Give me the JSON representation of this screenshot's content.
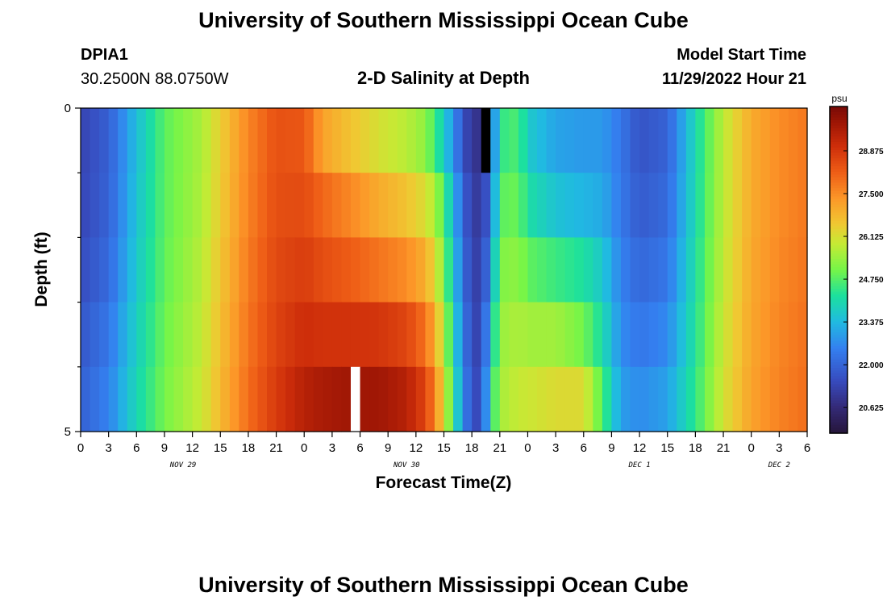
{
  "page": {
    "title": "University of Southern Mississippi Ocean Cube",
    "bottom_title": "University of Southern Mississippi Ocean Cube"
  },
  "header": {
    "station_id": "DPIA1",
    "coords": "30.2500N  88.0750W",
    "plot_title": "2-D Salinity at Depth",
    "model_start_label": "Model Start Time",
    "model_start_value": "11/29/2022 Hour 21"
  },
  "chart_data": {
    "type": "heatmap",
    "title": "2-D Salinity at Depth",
    "xlabel": "Forecast Time(Z)",
    "ylabel": "Depth (ft)",
    "x_hours_start": 0,
    "x_hours_end": 78,
    "x_tick_labels": [
      "0",
      "3",
      "6",
      "9",
      "12",
      "15",
      "18",
      "21",
      "0",
      "3",
      "6",
      "9",
      "12",
      "15",
      "18",
      "21",
      "0",
      "3",
      "6",
      "9",
      "12",
      "15",
      "18",
      "21",
      "0",
      "3",
      "6"
    ],
    "day_labels": [
      {
        "text": "NOV 29",
        "hour": 11
      },
      {
        "text": "NOV 30",
        "hour": 35
      },
      {
        "text": "DEC 1",
        "hour": 60
      },
      {
        "text": "DEC 2",
        "hour": 75
      }
    ],
    "y_tick_labels": [
      {
        "text": "0",
        "depth": 0
      },
      {
        "text": "5",
        "depth": 5
      }
    ],
    "ylim": [
      0,
      5
    ],
    "depth_layers": 5,
    "colorbar": {
      "unit": "psu",
      "min": 19.8,
      "max": 30.3,
      "tick_values": [
        20.625,
        22.0,
        23.375,
        24.75,
        26.125,
        27.5,
        28.875
      ],
      "tick_labels": [
        "20.625",
        "22.000",
        "23.375",
        "24.750",
        "26.125",
        "27.500",
        "28.875"
      ]
    },
    "salinity_keyframes": [
      {
        "h": 0,
        "s": [
          21.3,
          21.3,
          21.4,
          21.6,
          21.8,
          22.0
        ]
      },
      {
        "h": 3,
        "s": [
          21.9,
          21.9,
          22.0,
          22.2,
          22.5,
          22.6
        ]
      },
      {
        "h": 6,
        "s": [
          23.4,
          23.5,
          23.6,
          23.7,
          23.9,
          24.0
        ]
      },
      {
        "h": 9,
        "s": [
          24.8,
          24.8,
          24.8,
          24.9,
          25.0,
          25.1
        ]
      },
      {
        "h": 13,
        "s": [
          25.6,
          25.6,
          25.7,
          25.8,
          25.9,
          26.0
        ]
      },
      {
        "h": 16,
        "s": [
          26.8,
          26.8,
          26.9,
          27.0,
          27.1,
          27.2
        ]
      },
      {
        "h": 18,
        "s": [
          27.6,
          27.6,
          27.7,
          27.8,
          27.9,
          28.0
        ]
      },
      {
        "h": 21,
        "s": [
          28.4,
          28.4,
          28.5,
          28.6,
          28.7,
          28.9
        ]
      },
      {
        "h": 24,
        "s": [
          28.2,
          28.4,
          28.6,
          28.9,
          29.2,
          29.6
        ]
      },
      {
        "h": 26,
        "s": [
          26.5,
          27.8,
          28.3,
          28.6,
          29.3,
          29.9
        ]
      },
      {
        "h": 29,
        "s": [
          26.0,
          27.2,
          27.9,
          28.5,
          29.4,
          30.1
        ]
      },
      {
        "h": 32,
        "s": [
          25.6,
          26.6,
          27.4,
          28.3,
          29.5,
          30.0
        ]
      },
      {
        "h": 35,
        "s": [
          25.3,
          26.2,
          27.0,
          28.0,
          29.2,
          29.6
        ]
      },
      {
        "h": 37,
        "s": [
          24.8,
          25.8,
          26.5,
          27.4,
          28.4,
          28.8
        ]
      },
      {
        "h": 38,
        "s": [
          23.8,
          25.3,
          25.9,
          26.6,
          27.4,
          27.9
        ]
      },
      {
        "h": 39,
        "s": [
          23.2,
          24.4,
          24.9,
          25.4,
          26.0,
          26.4
        ]
      },
      {
        "h": 40,
        "s": [
          22.3,
          23.2,
          23.5,
          23.8,
          24.2,
          24.6
        ]
      },
      {
        "h": 41,
        "s": [
          21.5,
          22.0,
          22.2,
          22.4,
          22.7,
          22.9
        ]
      },
      {
        "h": 42,
        "s": [
          20.7,
          21.0,
          21.2,
          21.3,
          21.5,
          21.6
        ]
      },
      {
        "h": 43,
        "s": [
          20.9,
          21.0,
          21.2,
          21.2,
          21.3,
          21.4
        ]
      },
      {
        "h": 44,
        "s": [
          21.6,
          21.8,
          22.3,
          23.0,
          23.8,
          24.3
        ]
      },
      {
        "h": 45,
        "s": [
          24.2,
          24.6,
          25.0,
          25.3,
          25.5,
          25.6
        ]
      },
      {
        "h": 47,
        "s": [
          24.6,
          24.8,
          25.1,
          25.5,
          25.8,
          26.0
        ]
      },
      {
        "h": 48,
        "s": [
          23.6,
          23.8,
          24.5,
          25.2,
          25.8,
          26.1
        ]
      },
      {
        "h": 51,
        "s": [
          23.0,
          23.1,
          24.0,
          25.0,
          26.0,
          26.4
        ]
      },
      {
        "h": 54,
        "s": [
          23.0,
          22.8,
          23.8,
          24.6,
          25.4,
          27.0
        ]
      },
      {
        "h": 56,
        "s": [
          23.0,
          22.8,
          23.5,
          23.8,
          24.4,
          25.0
        ]
      },
      {
        "h": 58,
        "s": [
          22.4,
          22.3,
          22.5,
          22.6,
          22.8,
          23.1
        ]
      },
      {
        "h": 60,
        "s": [
          21.6,
          21.7,
          21.9,
          22.2,
          22.5,
          22.9
        ]
      },
      {
        "h": 63,
        "s": [
          21.9,
          22.0,
          22.2,
          22.5,
          22.8,
          23.2
        ]
      },
      {
        "h": 66,
        "s": [
          24.0,
          24.0,
          24.1,
          24.2,
          24.3,
          24.5
        ]
      },
      {
        "h": 69,
        "s": [
          25.8,
          25.8,
          25.8,
          25.9,
          26.0,
          26.1
        ]
      },
      {
        "h": 72,
        "s": [
          27.0,
          27.0,
          27.0,
          27.1,
          27.1,
          27.2
        ]
      },
      {
        "h": 75,
        "s": [
          27.5,
          27.5,
          27.5,
          27.6,
          27.6,
          27.7
        ]
      },
      {
        "h": 78,
        "s": [
          27.8,
          27.8,
          27.8,
          27.9,
          27.9,
          28.0
        ]
      }
    ],
    "missing_cells": [
      {
        "hour": 43,
        "layer": 0,
        "color": "#000000"
      },
      {
        "hour": 29,
        "layer": 4,
        "color": "#ffffff"
      }
    ]
  }
}
